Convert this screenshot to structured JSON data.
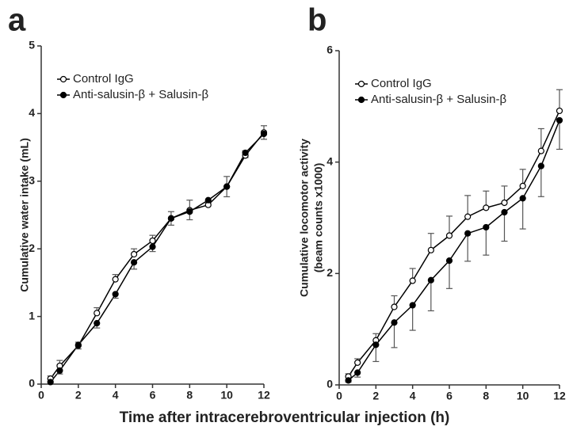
{
  "chart_data": [
    {
      "type": "line",
      "label": "a",
      "ylabel": [
        "Cumulative water intake (mL)"
      ],
      "x": [
        0.5,
        1,
        2,
        3,
        4,
        5,
        6,
        7,
        8,
        9,
        10,
        11,
        12
      ],
      "xlim": [
        0,
        12
      ],
      "xticks": [
        0,
        2,
        4,
        6,
        8,
        10,
        12
      ],
      "ylim": [
        0,
        5
      ],
      "yticks": [
        0,
        1,
        2,
        3,
        4,
        5
      ],
      "legend": "upper left",
      "series": [
        {
          "name": "Control IgG",
          "color": "#000000",
          "marker_fill": "#ffffff",
          "error_direction": "up",
          "values": [
            0.08,
            0.27,
            0.57,
            1.05,
            1.55,
            1.92,
            2.12,
            2.45,
            2.57,
            2.65,
            2.92,
            3.38,
            3.72
          ],
          "errors": [
            0.04,
            0.08,
            0.05,
            0.08,
            0.07,
            0.08,
            0.08,
            0.1,
            0.15,
            0.05,
            0.15,
            0.07,
            0.1
          ]
        },
        {
          "name": "Anti-salusin-β + Salusin-β",
          "color": "#000000",
          "marker_fill": "#000000",
          "error_direction": "down",
          "values": [
            0.03,
            0.2,
            0.58,
            0.9,
            1.33,
            1.8,
            2.03,
            2.45,
            2.55,
            2.72,
            2.92,
            3.42,
            3.7
          ],
          "errors": [
            0.03,
            0.05,
            0.06,
            0.07,
            0.06,
            0.1,
            0.07,
            0.1,
            0.12,
            0.04,
            0.15,
            0.07,
            0.08
          ]
        }
      ]
    },
    {
      "type": "line",
      "label": "b",
      "ylabel": [
        "Cumulative locomotor activity",
        "(beam counts x1000)"
      ],
      "x": [
        0.5,
        1,
        2,
        3,
        4,
        5,
        6,
        7,
        8,
        9,
        10,
        11,
        12
      ],
      "xlim": [
        0,
        12
      ],
      "xticks": [
        0,
        2,
        4,
        6,
        8,
        10,
        12
      ],
      "ylim": [
        0,
        6
      ],
      "yticks": [
        0,
        2,
        4,
        6
      ],
      "legend": "upper left",
      "series": [
        {
          "name": "Control IgG",
          "color": "#000000",
          "marker_fill": "#ffffff",
          "error_direction": "up",
          "values": [
            0.15,
            0.4,
            0.8,
            1.4,
            1.87,
            2.42,
            2.68,
            3.02,
            3.18,
            3.27,
            3.57,
            4.2,
            4.92
          ],
          "errors": [
            0.05,
            0.07,
            0.12,
            0.2,
            0.22,
            0.3,
            0.35,
            0.38,
            0.3,
            0.3,
            0.3,
            0.4,
            0.38
          ]
        },
        {
          "name": "Anti-salusin-β + Salusin-β",
          "color": "#000000",
          "marker_fill": "#000000",
          "error_direction": "down",
          "values": [
            0.08,
            0.22,
            0.72,
            1.12,
            1.43,
            1.88,
            2.23,
            2.72,
            2.83,
            3.1,
            3.35,
            3.93,
            4.75
          ],
          "errors": [
            0.03,
            0.08,
            0.3,
            0.45,
            0.45,
            0.55,
            0.5,
            0.5,
            0.5,
            0.52,
            0.55,
            0.55,
            0.52
          ]
        }
      ]
    }
  ],
  "xlabel": "Time after intracerebroventricular injection (h)"
}
